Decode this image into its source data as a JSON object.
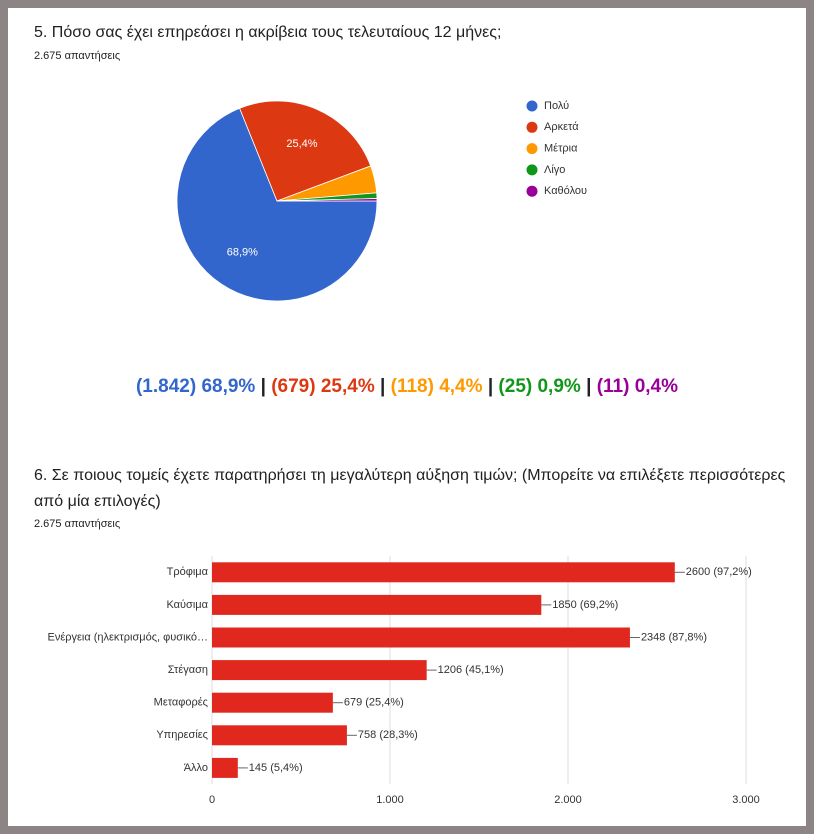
{
  "chart_data": [
    {
      "type": "pie",
      "title": "5. Πόσο σας έχει επηρεάσει η ακρίβεια τους τελευταίους 12 μήνες;",
      "subtitle": "2.675 απαντήσεις",
      "categories": [
        "Πολύ",
        "Αρκετά",
        "Μέτρια",
        "Λίγο",
        "Καθόλου"
      ],
      "values": [
        68.9,
        25.4,
        4.4,
        0.9,
        0.4
      ],
      "value_labels": [
        "68,9%",
        "25,4%",
        null,
        null,
        null
      ],
      "colors": [
        "#3366cc",
        "#dc3912",
        "#ff9900",
        "#109618",
        "#990099"
      ],
      "legend": "right",
      "summary": [
        "(1.842) 68,9%",
        "(679) 25,4%",
        "(118) 4,4%",
        "(25) 0,9%",
        "(11) 0,4%"
      ],
      "summary_separator": "|"
    },
    {
      "type": "hbar",
      "title": "6. Σε ποιους τομείς έχετε παρατηρήσει τη μεγαλύτερη αύξηση τιμών; (Μπορείτε να επιλέξετε περισσότερες από μία επιλογές)",
      "subtitle": "2.675 απαντήσεις",
      "categories": [
        "Τρόφιμα",
        "Καύσιμα",
        "Ενέργεια (ηλεκτρισμός, φυσικό…",
        "Στέγαση",
        "Μεταφορές",
        "Υπηρεσίες",
        "Άλλο"
      ],
      "values": [
        2600,
        1850,
        2348,
        1206,
        679,
        758,
        145
      ],
      "value_labels": [
        "2600 (97,2%)",
        "1850 (69,2%)",
        "2348 (87,8%)",
        "1206 (45,1%)",
        "679 (25,4%)",
        "758 (28,3%)",
        "145 (5,4%)"
      ],
      "color": "#e0281f",
      "xlim": [
        0,
        3000
      ],
      "xticks": [
        0,
        {
          "value": 1000,
          "label": "1.000"
        },
        {
          "value": 2000,
          "label": "2.000"
        },
        {
          "value": 3000,
          "label": "3.000"
        }
      ],
      "grid": true
    }
  ]
}
